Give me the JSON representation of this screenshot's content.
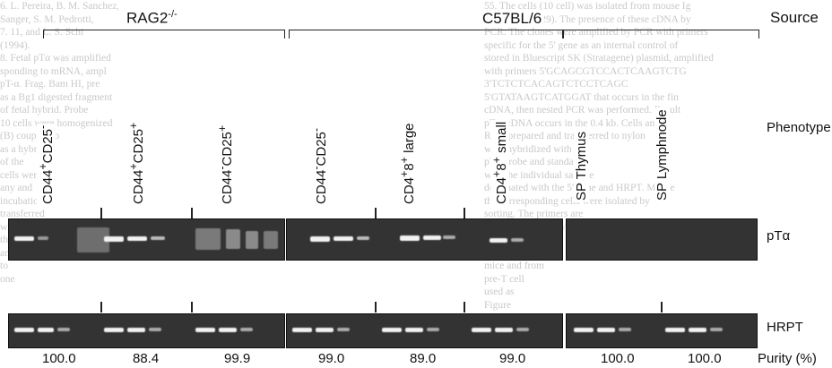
{
  "figure": {
    "sources": {
      "rag2": "RAG2",
      "rag2_sup": "-/-",
      "c57": "C57BL/6",
      "row_label": "Source"
    },
    "phenotype_label": "Phenotype",
    "phenotypes": [
      {
        "base": "CD44",
        "sup1": "+",
        "mid": "CD25",
        "sup2": "-"
      },
      {
        "base": "CD44",
        "sup1": "+",
        "mid": "CD25",
        "sup2": "+"
      },
      {
        "base": "CD44",
        "sup1": "-",
        "mid": "CD25",
        "sup2": "+"
      },
      {
        "base": "CD44",
        "sup1": "-",
        "mid": "CD25",
        "sup2": "-"
      },
      {
        "base": "CD4",
        "sup1": "+",
        "mid": "8",
        "sup2": "+",
        "tail": " large"
      },
      {
        "base": "CD4",
        "sup1": "+",
        "mid": "8",
        "sup2": "+",
        "tail": " small"
      },
      {
        "base": "SP Thymus"
      },
      {
        "base": "SP Lymphnode"
      }
    ],
    "gel_labels": {
      "ptalpha": "pTα",
      "hrpt": "HRPT"
    },
    "purity_label": "Purity (%)",
    "purity_values": [
      "100.0",
      "88.4",
      "99.9",
      "99.0",
      "89.0",
      "99.0",
      "100.0",
      "100.0"
    ]
  },
  "background_text": {
    "left_column": [
      "6. L. Pereira, B. M. Sanchez,",
      "Sanger, S. M. Pedrotti,",
      "7. 11, and L. S. Schi",
      "(1994).",
      "8. Fetal pTα was amplified",
      "sponding to mRNA, ampl",
      "pT-α. Frag. Bam HI, pre",
      "as a Bg1 digested fragment",
      "of fetal hybrid. Probe",
      "10 cells were homogenized",
      "(B) coupled to",
      "as a hybrid",
      "of the",
      "cells were",
      "any and",
      "incubation in",
      "transferred",
      "which",
      "the",
      "and",
      "to",
      "one"
    ],
    "right_column": [
      "55. The cells (10 cell) was isolated from mouse Ig",
      "as described (29). The presence of these cDNA by",
      "PCR. The clones were amplified by PCR with primers",
      "specific for the 5' gene as an internal control of",
      "stored in Bluescript SK (Stratagene) plasmid, amplified",
      "with primers 5'GCAGCGTCCACTCAAGTCTG",
      "3'TCTCTCACAGTCTCCTCAGC",
      "5'GTATAAGTCATGGAT that occurs in the fin",
      "cDNA, then nested PCR was performed. Result",
      "pT-α cDNA occurs in the 0.4 kb. Cells and",
      "RNA prepared and transferred to nylon",
      "were hybridized with the",
      "pTα probe and standard",
      "with the individual sample",
      "designated with the 5' gene and HRPT. Mouse",
      "the corresponding cells were isolated by",
      "sorting. The primers are",
      "PCR with HRPT, whereas",
      "the cells were",
      "cells from",
      "mice and from",
      "pre-T cell",
      "used as",
      "Figure",
      "of",
      "and the"
    ]
  }
}
